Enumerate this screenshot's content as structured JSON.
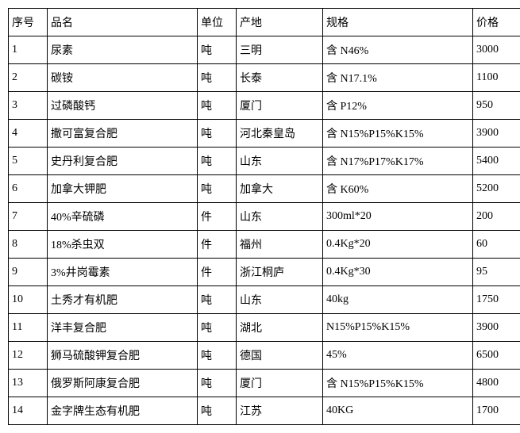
{
  "table": {
    "columns": [
      "序号",
      "品名",
      "单位",
      "产地",
      "规格",
      "价格"
    ],
    "rows": [
      [
        "1",
        "尿素",
        "吨",
        "三明",
        "含 N46%",
        "3000"
      ],
      [
        "2",
        "碳铵",
        "吨",
        "长泰",
        "含 N17.1%",
        "1100"
      ],
      [
        "3",
        "过磷酸钙",
        "吨",
        "厦门",
        "含 P12%",
        "950"
      ],
      [
        "4",
        "撒可富复合肥",
        "吨",
        "河北秦皇岛",
        "含 N15%P15%K15%",
        "3900"
      ],
      [
        "5",
        "史丹利复合肥",
        "吨",
        "山东",
        "含 N17%P17%K17%",
        "5400"
      ],
      [
        "6",
        "加拿大钾肥",
        "吨",
        "加拿大",
        "含 K60%",
        "5200"
      ],
      [
        "7",
        "40%辛硫磷",
        "件",
        "山东",
        "300ml*20",
        "200"
      ],
      [
        "8",
        "18%杀虫双",
        "件",
        "福州",
        "0.4Kg*20",
        "60"
      ],
      [
        "9",
        "3%井岗霉素",
        "件",
        "浙江桐庐",
        "0.4Kg*30",
        "95"
      ],
      [
        "10",
        "土秀才有机肥",
        "吨",
        "山东",
        "40kg",
        "1750"
      ],
      [
        "11",
        "洋丰复合肥",
        "吨",
        "湖北",
        "N15%P15%K15%",
        "3900"
      ],
      [
        "12",
        "狮马硫酸钾复合肥",
        "吨",
        "德国",
        "45%",
        "6500"
      ],
      [
        "13",
        "俄罗斯阿康复合肥",
        "吨",
        "厦门",
        "含 N15%P15%K15%",
        "4800"
      ],
      [
        "14",
        "金字牌生态有机肥",
        "吨",
        "江苏",
        "40KG",
        "1700"
      ]
    ],
    "col_classes": [
      "col-seq",
      "col-name",
      "col-unit",
      "col-origin",
      "col-spec",
      "col-price"
    ],
    "border_color": "#000000",
    "background_color": "#ffffff",
    "text_color": "#000000",
    "font_size": 14
  }
}
